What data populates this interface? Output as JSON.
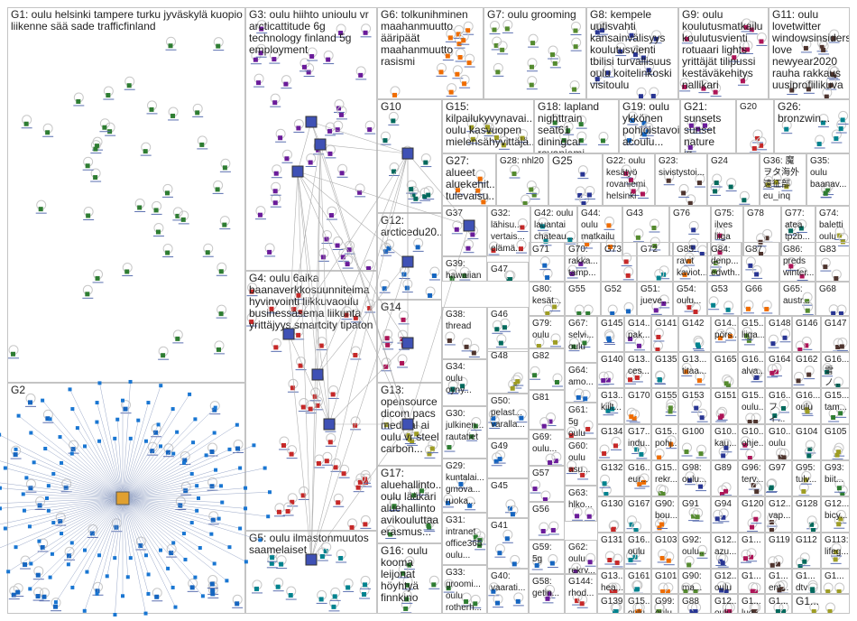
{
  "graph": {
    "groups": [
      {
        "id": "G1",
        "text": "G1: oulu helsinki tampere turku jyväskylä kuopio liikenne sää sade trafficfinland"
      },
      {
        "id": "G2",
        "text": "G2"
      },
      {
        "id": "G3",
        "text": "G3: oulu hiihto unioulu vr arcticattitude 6g technology finland 5g employment"
      },
      {
        "id": "G4",
        "text": "G4: oulu 6aika baanaverkkosuunnitelma hyvinvointi liikkuvaoulu businessasema liikunta yrittäjyys smartcity tipaton"
      },
      {
        "id": "G5",
        "text": "G5: oulu ilmastonmuutos saamelaiset"
      },
      {
        "id": "G6",
        "text": "G6: tolkunihminen maahanmuutto ääripäät maahanmuutto rasismi"
      },
      {
        "id": "G7",
        "text": "G7: oulu grooming"
      },
      {
        "id": "G8",
        "text": "G8: kempele uutisvahti kansainvälisyys koulutusvienti tbilisi turvallisuus oulu koitelinkoski visitoulu"
      },
      {
        "id": "G9",
        "text": "G9: oulu koulutusmatkailu koulutusvienti rotuaari lights yrittäjät tilipussi kestäväkehitys nallikari"
      },
      {
        "id": "G11",
        "text": "G11: oulu lovetwitter windowsinsiders love newyear2020 rauha rakkaus uusiprofiilikuva"
      },
      {
        "id": "G10",
        "text": "G10"
      },
      {
        "id": "G15",
        "text": "G15: kilpailukyvynavai... oulu kasvuopen mielensähyvittäjä..."
      },
      {
        "id": "G18",
        "text": "G18: lapland nighttrain seat61 diningcar rovaniemi"
      },
      {
        "id": "G19",
        "text": "G19: oulu ykkönen pohjoistavoi... acoulu..."
      },
      {
        "id": "G21",
        "text": "G21: sunsets sunset nature ig..."
      },
      {
        "id": "G20",
        "text": "G20"
      },
      {
        "id": "G26",
        "text": "G26: bronzwin..."
      },
      {
        "id": "G27",
        "text": "G27: alueet aluekehit... tulevaisu..."
      },
      {
        "id": "G28",
        "text": "G28: nhl20"
      },
      {
        "id": "G25",
        "text": "G25"
      },
      {
        "id": "G22",
        "text": "G22: oulu kesätyö rovaniemi helsinki"
      },
      {
        "id": "G23",
        "text": "G23: sivistystoi..."
      },
      {
        "id": "G24",
        "text": "G24"
      },
      {
        "id": "G36",
        "text": "G36: 魔 ヲタ海外 遠征部 eu_inq"
      },
      {
        "id": "G35",
        "text": "G35: oulu baanav..."
      },
      {
        "id": "G12",
        "text": "G12: arcticedu20..."
      },
      {
        "id": "G37",
        "text": "G37"
      },
      {
        "id": "G32",
        "text": "G32: lähisu... vertais... elämä..."
      },
      {
        "id": "G42",
        "text": "G42: oulu lauantai chateau..."
      },
      {
        "id": "G44",
        "text": "G44: oulu matkailu"
      },
      {
        "id": "G43",
        "text": "G43"
      },
      {
        "id": "G76",
        "text": "G76"
      },
      {
        "id": "G75",
        "text": "G75: ilves liiga"
      },
      {
        "id": "G78",
        "text": "G78"
      },
      {
        "id": "G77",
        "text": "G77: atea tp2b..."
      },
      {
        "id": "G74",
        "text": "G74: baletti oulu"
      },
      {
        "id": "G39",
        "text": "G39: hawaiian"
      },
      {
        "id": "G71",
        "text": "G71"
      },
      {
        "id": "G70",
        "text": "G70: rakka... tamp..."
      },
      {
        "id": "G73",
        "text": "G73"
      },
      {
        "id": "G72",
        "text": "G72"
      },
      {
        "id": "G85",
        "text": "G85: ravit kaviot..."
      },
      {
        "id": "G84",
        "text": "G84: denp... edwth..."
      },
      {
        "id": "G87",
        "text": "G87"
      },
      {
        "id": "G86",
        "text": "G86: preds winter..."
      },
      {
        "id": "G83",
        "text": "G83"
      },
      {
        "id": "G47",
        "text": "G47"
      },
      {
        "id": "G80",
        "text": "G80: kesät..."
      },
      {
        "id": "G55",
        "text": "G55"
      },
      {
        "id": "G52",
        "text": "G52"
      },
      {
        "id": "G51",
        "text": "G51: jueve..."
      },
      {
        "id": "G54",
        "text": "G54: oulu..."
      },
      {
        "id": "G53",
        "text": "G53"
      },
      {
        "id": "G66",
        "text": "G66"
      },
      {
        "id": "G65",
        "text": "G65: austr..."
      },
      {
        "id": "G68",
        "text": "G68"
      },
      {
        "id": "G14",
        "text": "G14"
      },
      {
        "id": "G38",
        "text": "G38: thread"
      },
      {
        "id": "G46",
        "text": "G46"
      },
      {
        "id": "G79",
        "text": "G79: oulu"
      },
      {
        "id": "G67",
        "text": "G67: selvi... oulu"
      },
      {
        "id": "G145",
        "text": "G145"
      },
      {
        "id": "G144x",
        "text": "G14... pak..."
      },
      {
        "id": "G141",
        "text": "G141"
      },
      {
        "id": "G142",
        "text": "G142"
      },
      {
        "id": "G14y",
        "text": "G14... pörs..."
      },
      {
        "id": "G15y",
        "text": "G15... liiga..."
      },
      {
        "id": "G148",
        "text": "G148"
      },
      {
        "id": "G146",
        "text": "G146"
      },
      {
        "id": "G147",
        "text": "G147"
      },
      {
        "id": "G34",
        "text": "G34: oulu oyny..."
      },
      {
        "id": "G48",
        "text": "G48"
      },
      {
        "id": "G82",
        "text": "G82"
      },
      {
        "id": "G64",
        "text": "G64: amo..."
      },
      {
        "id": "G140",
        "text": "G140"
      },
      {
        "id": "G13x",
        "text": "G13... ces..."
      },
      {
        "id": "G135",
        "text": "G135"
      },
      {
        "id": "G13y",
        "text": "G13... titaa..."
      },
      {
        "id": "G165",
        "text": "G165"
      },
      {
        "id": "G16x",
        "text": "G16... alva..."
      },
      {
        "id": "G164",
        "text": "G164"
      },
      {
        "id": "G162",
        "text": "G162"
      },
      {
        "id": "G16y",
        "text": "G16... 雪ノ..."
      },
      {
        "id": "G13",
        "text": "G13: opensource dicom pacs medical ai oulu vr steel carbon..."
      },
      {
        "id": "G30",
        "text": "G30: julkinen... rautatiet"
      },
      {
        "id": "G50",
        "text": "G50: pelast... varalla..."
      },
      {
        "id": "G81",
        "text": "G81"
      },
      {
        "id": "G61",
        "text": "G61: 5g oulu"
      },
      {
        "id": "G13z",
        "text": "G13... kiilt..."
      },
      {
        "id": "G170",
        "text": "G170"
      },
      {
        "id": "G155",
        "text": "G155"
      },
      {
        "id": "G153",
        "text": "G153"
      },
      {
        "id": "G151",
        "text": "G151"
      },
      {
        "id": "G15z",
        "text": "G15... oulu..."
      },
      {
        "id": "G16z",
        "text": "G16... フィ..."
      },
      {
        "id": "G16w",
        "text": "G16... oulu"
      },
      {
        "id": "G15w",
        "text": "G15... tam..."
      },
      {
        "id": "G49",
        "text": "G49"
      },
      {
        "id": "G69",
        "text": "G69: oulu..."
      },
      {
        "id": "G134",
        "text": "G134"
      },
      {
        "id": "G17x",
        "text": "G17... indu..."
      },
      {
        "id": "G15v",
        "text": "G15... pohj..."
      },
      {
        "id": "G100",
        "text": "G100"
      },
      {
        "id": "G10x",
        "text": "G10... kau..."
      },
      {
        "id": "G10y",
        "text": "G10... ohje..."
      },
      {
        "id": "G10z",
        "text": "G10... oulu"
      },
      {
        "id": "G104",
        "text": "G104"
      },
      {
        "id": "G105",
        "text": "G105"
      },
      {
        "id": "G17",
        "text": "G17: aluehallinto... oulu lääkäri aluehallinto avikouluttaa erasmus..."
      },
      {
        "id": "G29",
        "text": "G29: kuntalai... gmova... ruoka..."
      },
      {
        "id": "G57",
        "text": "G57"
      },
      {
        "id": "G60",
        "text": "G60: oulu asu..."
      },
      {
        "id": "G132",
        "text": "G132"
      },
      {
        "id": "G16v",
        "text": "G16... eur..."
      },
      {
        "id": "G15u",
        "text": "G15... rekr..."
      },
      {
        "id": "G98",
        "text": "G98: oulu..."
      },
      {
        "id": "G89",
        "text": "G89"
      },
      {
        "id": "G96",
        "text": "G96: terv..."
      },
      {
        "id": "G97",
        "text": "G97"
      },
      {
        "id": "G95",
        "text": "G95: tulv..."
      },
      {
        "id": "G93",
        "text": "G93: biit..."
      },
      {
        "id": "G45",
        "text": "G45"
      },
      {
        "id": "G63",
        "text": "G63: hlko..."
      },
      {
        "id": "G130",
        "text": "G130"
      },
      {
        "id": "G167",
        "text": "G167"
      },
      {
        "id": "G90",
        "text": "G90: bou..."
      },
      {
        "id": "G91",
        "text": "G91"
      },
      {
        "id": "G94",
        "text": "G94"
      },
      {
        "id": "G120",
        "text": "G120"
      },
      {
        "id": "G12x",
        "text": "G12... vap..."
      },
      {
        "id": "G128",
        "text": "G128"
      },
      {
        "id": "G12y",
        "text": "G12... bicy..."
      },
      {
        "id": "G31",
        "text": "G31: intranet office365 oulu..."
      },
      {
        "id": "G41",
        "text": "G41"
      },
      {
        "id": "G56",
        "text": "G56"
      },
      {
        "id": "G131",
        "text": "G131"
      },
      {
        "id": "G16u",
        "text": "G16... oulu"
      },
      {
        "id": "G103",
        "text": "G103"
      },
      {
        "id": "G92",
        "text": "G92: oulu..."
      },
      {
        "id": "G12z",
        "text": "G12... azu..."
      },
      {
        "id": "G1x",
        "text": "G1..."
      },
      {
        "id": "G119",
        "text": "G119"
      },
      {
        "id": "G112",
        "text": "G112"
      },
      {
        "id": "G113",
        "text": "G113: lifeg..."
      },
      {
        "id": "G16",
        "text": "G16: oulu kooma leijonat höyhtyä finnkino"
      },
      {
        "id": "G59",
        "text": "G59: 5g"
      },
      {
        "id": "G62",
        "text": "G62: oulu rekry..."
      },
      {
        "id": "G13w",
        "text": "G13... hea..."
      },
      {
        "id": "G161",
        "text": "G161"
      },
      {
        "id": "G101",
        "text": "G101"
      },
      {
        "id": "G90y",
        "text": "G90: ma..."
      },
      {
        "id": "G12w",
        "text": "G12... oulu"
      },
      {
        "id": "G1y",
        "text": "G1..."
      },
      {
        "id": "G1z",
        "text": "G1... ent... lea..."
      },
      {
        "id": "G1w",
        "text": "G1... dtv dro..."
      },
      {
        "id": "G1v",
        "text": "G1..."
      },
      {
        "id": "G33",
        "text": "G33: groomi... oulu rotherh..."
      },
      {
        "id": "G40",
        "text": "G40: vaarati..."
      },
      {
        "id": "G58",
        "text": "G58: getin..."
      },
      {
        "id": "G144",
        "text": "G144: rhod..."
      },
      {
        "id": "G139",
        "text": "G139"
      },
      {
        "id": "G15t",
        "text": "G15... oulu"
      },
      {
        "id": "G99",
        "text": "G99: oulu"
      },
      {
        "id": "G88",
        "text": "G88"
      },
      {
        "id": "G12v",
        "text": "G12... oulu"
      },
      {
        "id": "G1u",
        "text": "G1... luo... talvi"
      },
      {
        "id": "G1t",
        "text": "G1..."
      },
      {
        "id": "G1s",
        "text": "G1..."
      }
    ]
  }
}
